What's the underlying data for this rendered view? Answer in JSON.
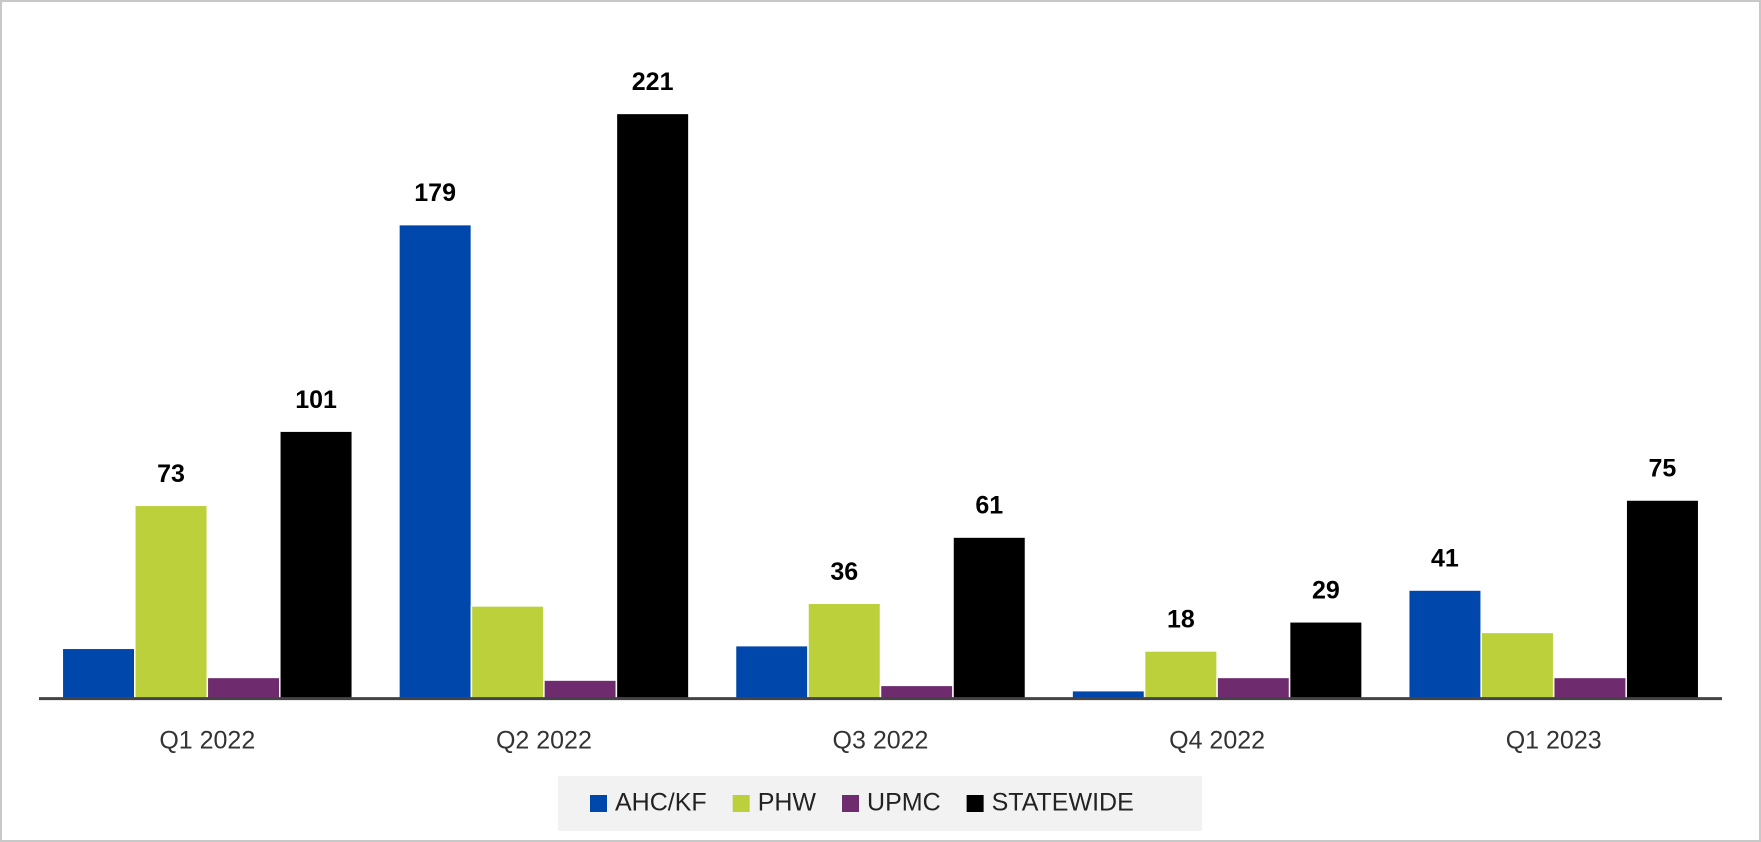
{
  "chart_data": {
    "type": "bar",
    "categories": [
      "Q1 2022",
      "Q2 2022",
      "Q3 2022",
      "Q4 2022",
      "Q1 2023"
    ],
    "series": [
      {
        "name": "AHC/KF",
        "color": "#0047ab",
        "values": [
          19,
          179,
          20,
          3,
          41
        ],
        "value_labels": [
          null,
          "179",
          null,
          null,
          "41"
        ]
      },
      {
        "name": "PHW",
        "color": "#bcd03c",
        "values": [
          73,
          35,
          36,
          18,
          25
        ],
        "value_labels": [
          "73",
          null,
          "36",
          "18",
          null
        ]
      },
      {
        "name": "UPMC",
        "color": "#6e2c6f",
        "values": [
          8,
          7,
          5,
          8,
          8
        ],
        "value_labels": [
          null,
          null,
          null,
          null,
          null
        ]
      },
      {
        "name": "STATEWIDE",
        "color": "#000000",
        "values": [
          101,
          221,
          61,
          29,
          75
        ],
        "value_labels": [
          "101",
          "221",
          "61",
          "29",
          "75"
        ]
      }
    ],
    "legend": "bottom"
  }
}
